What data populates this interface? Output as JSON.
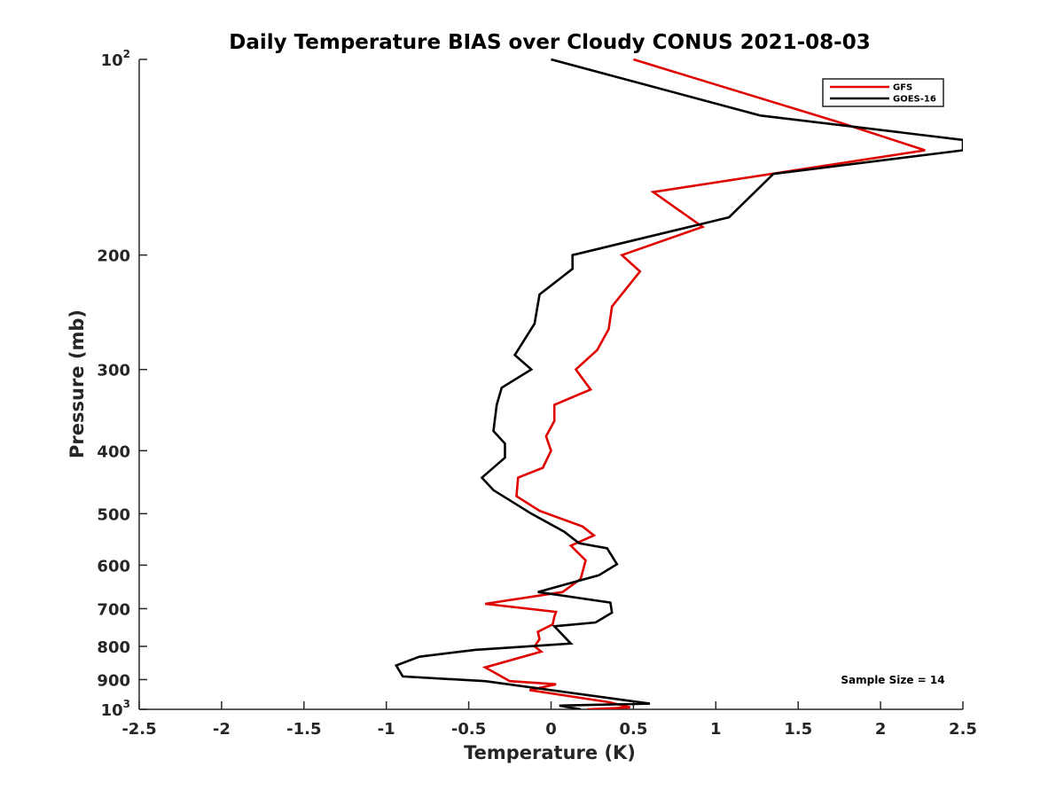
{
  "chart_data": {
    "type": "line",
    "title": "Daily Temperature BIAS over Cloudy CONUS 2021-08-03",
    "xlabel": "Temperature (K)",
    "ylabel": "Pressure (mb)",
    "xlim": [
      -2.5,
      2.5
    ],
    "ylim": [
      100,
      1000
    ],
    "yscale": "log",
    "y_reversed": true,
    "grid": false,
    "legend_position": "top-right",
    "x_ticks": [
      "-2.5",
      "-2",
      "-1.5",
      "-1",
      "-0.5",
      "0",
      "0.5",
      "1",
      "1.5",
      "2",
      "2.5"
    ],
    "x_tick_values": [
      -2.5,
      -2,
      -1.5,
      -1,
      -0.5,
      0,
      0.5,
      1,
      1.5,
      2,
      2.5
    ],
    "y_tick_values": [
      100,
      200,
      300,
      400,
      500,
      600,
      700,
      800,
      900,
      1000
    ],
    "y_tick_labels": [
      {
        "base": "10",
        "exp": "2"
      },
      {
        "base": "200",
        "exp": ""
      },
      {
        "base": "300",
        "exp": ""
      },
      {
        "base": "400",
        "exp": ""
      },
      {
        "base": "500",
        "exp": ""
      },
      {
        "base": "600",
        "exp": ""
      },
      {
        "base": "700",
        "exp": ""
      },
      {
        "base": "800",
        "exp": ""
      },
      {
        "base": "900",
        "exp": ""
      },
      {
        "base": "10",
        "exp": "3"
      }
    ],
    "annotation": "Sample Size = 14",
    "series": [
      {
        "name": "GFS",
        "color": "#e00000",
        "points": [
          [
            0.5,
            100
          ],
          [
            1.75,
            125
          ],
          [
            2.27,
            138
          ],
          [
            0.62,
            160
          ],
          [
            0.92,
            181
          ],
          [
            0.43,
            200
          ],
          [
            0.54,
            212
          ],
          [
            0.37,
            240
          ],
          [
            0.35,
            260
          ],
          [
            0.28,
            280
          ],
          [
            0.15,
            300
          ],
          [
            0.24,
            322
          ],
          [
            0.02,
            340
          ],
          [
            0.02,
            360
          ],
          [
            -0.03,
            380
          ],
          [
            0.0,
            400
          ],
          [
            -0.05,
            425
          ],
          [
            -0.2,
            440
          ],
          [
            -0.21,
            470
          ],
          [
            -0.07,
            495
          ],
          [
            0.19,
            523
          ],
          [
            0.26,
            540
          ],
          [
            0.12,
            560
          ],
          [
            0.21,
            590
          ],
          [
            0.18,
            630
          ],
          [
            0.07,
            660
          ],
          [
            -0.4,
            688
          ],
          [
            0.03,
            708
          ],
          [
            0.02,
            720
          ],
          [
            0.01,
            740
          ],
          [
            -0.08,
            760
          ],
          [
            -0.07,
            780
          ],
          [
            -0.1,
            800
          ],
          [
            -0.06,
            815
          ],
          [
            -0.4,
            862
          ],
          [
            -0.25,
            905
          ],
          [
            0.03,
            915
          ],
          [
            -0.13,
            934
          ],
          [
            0.35,
            975
          ],
          [
            0.48,
            993
          ],
          [
            0.22,
            1000
          ]
        ]
      },
      {
        "name": "GOES-16",
        "color": "#000000",
        "points": [
          [
            0.0,
            100
          ],
          [
            1.27,
            122
          ],
          [
            2.5,
            133
          ],
          [
            2.5,
            138
          ],
          [
            1.35,
            150
          ],
          [
            1.08,
            175
          ],
          [
            0.13,
            200
          ],
          [
            0.13,
            210
          ],
          [
            -0.07,
            230
          ],
          [
            -0.1,
            255
          ],
          [
            -0.22,
            285
          ],
          [
            -0.12,
            300
          ],
          [
            -0.3,
            320
          ],
          [
            -0.33,
            340
          ],
          [
            -0.35,
            373
          ],
          [
            -0.28,
            390
          ],
          [
            -0.28,
            410
          ],
          [
            -0.42,
            440
          ],
          [
            -0.35,
            460
          ],
          [
            -0.12,
            500
          ],
          [
            0.08,
            533
          ],
          [
            0.17,
            555
          ],
          [
            0.34,
            565
          ],
          [
            0.4,
            598
          ],
          [
            0.29,
            622
          ],
          [
            -0.08,
            660
          ],
          [
            0.36,
            685
          ],
          [
            0.37,
            710
          ],
          [
            0.27,
            735
          ],
          [
            0.02,
            745
          ],
          [
            0.12,
            792
          ],
          [
            -0.46,
            810
          ],
          [
            -0.8,
            830
          ],
          [
            -0.94,
            856
          ],
          [
            -0.9,
            890
          ],
          [
            -0.4,
            905
          ],
          [
            0.6,
            980
          ],
          [
            0.05,
            987
          ],
          [
            0.18,
            1000
          ]
        ]
      }
    ]
  }
}
